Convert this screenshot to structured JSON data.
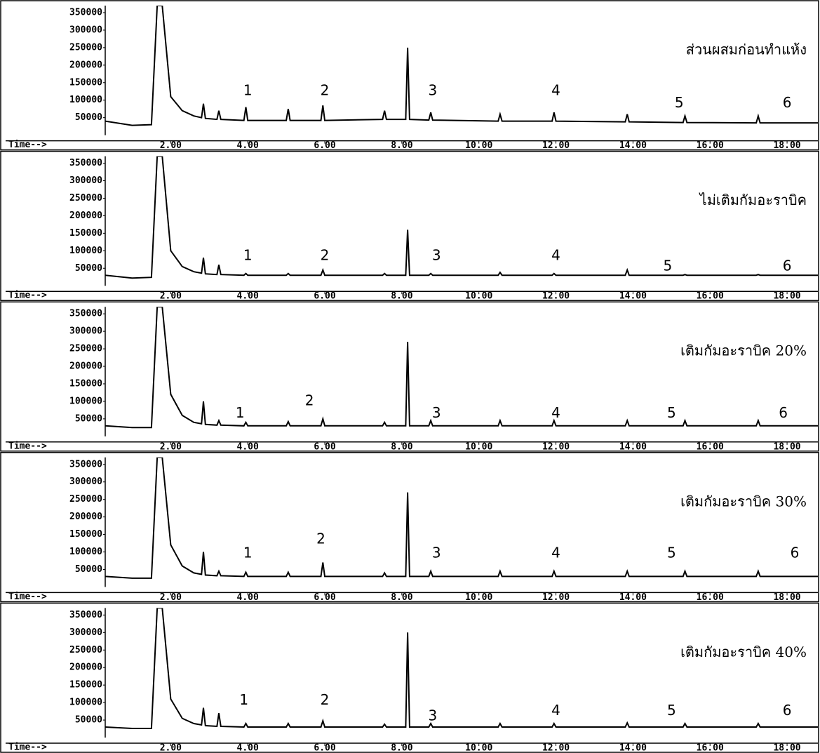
{
  "chart_data": [
    {
      "type": "line",
      "title": "ส่วนผสมก่อนทำแห้ง",
      "xlabel": "Time-->",
      "x": [
        0.3,
        1.0,
        1.5,
        1.65,
        1.72,
        1.78,
        2.0,
        2.3,
        2.6,
        2.8,
        2.85,
        2.9,
        3.2,
        3.25,
        3.3,
        3.9,
        3.95,
        4.0,
        5.0,
        5.05,
        5.1,
        5.9,
        5.95,
        6.0,
        7.5,
        7.55,
        7.6,
        8.1,
        8.15,
        8.2,
        8.7,
        8.75,
        8.8,
        10.5,
        10.55,
        10.6,
        11.9,
        11.95,
        12.0,
        13.8,
        13.85,
        13.9,
        15.3,
        15.35,
        15.4,
        17.2,
        17.25,
        17.3,
        18.8
      ],
      "values": [
        40000,
        28000,
        30000,
        370000,
        370000,
        370000,
        110000,
        70000,
        55000,
        50000,
        90000,
        48000,
        45000,
        70000,
        45000,
        42000,
        80000,
        42000,
        42000,
        75000,
        42000,
        42000,
        85000,
        42000,
        45000,
        70000,
        45000,
        45000,
        250000,
        45000,
        43000,
        65000,
        43000,
        40000,
        60000,
        40000,
        40000,
        65000,
        40000,
        38000,
        60000,
        38000,
        36000,
        55000,
        36000,
        35000,
        55000,
        35000,
        35000
      ],
      "color": "#000000",
      "xlim": [
        0.3,
        18.8
      ],
      "ylim": [
        0,
        370000
      ],
      "xticks": [
        {
          "value": 2,
          "label": "2.00"
        },
        {
          "value": 4,
          "label": "4.00"
        },
        {
          "value": 6,
          "label": "6.00"
        },
        {
          "value": 8,
          "label": "8.00"
        },
        {
          "value": 10,
          "label": "10.00"
        },
        {
          "value": 12,
          "label": "12.00"
        },
        {
          "value": 14,
          "label": "14.00"
        },
        {
          "value": 16,
          "label": "16.00"
        },
        {
          "value": 18,
          "label": "18.00"
        }
      ],
      "yticks": [
        50000,
        100000,
        150000,
        200000,
        250000,
        300000,
        350000
      ],
      "annotations": [
        {
          "text": "1",
          "x": 4.0,
          "y": 125000
        },
        {
          "text": "2",
          "x": 6.0,
          "y": 125000
        },
        {
          "text": "3",
          "x": 8.8,
          "y": 125000
        },
        {
          "text": "4",
          "x": 12.0,
          "y": 125000
        },
        {
          "text": "5",
          "x": 15.2,
          "y": 90000
        },
        {
          "text": "6",
          "x": 18.0,
          "y": 90000
        }
      ]
    },
    {
      "type": "line",
      "title": "ไม่เติมกัมอะราบิค",
      "xlabel": "Time-->",
      "x": [
        0.3,
        1.0,
        1.5,
        1.65,
        1.72,
        1.78,
        2.0,
        2.3,
        2.6,
        2.8,
        2.85,
        2.9,
        3.2,
        3.25,
        3.3,
        3.9,
        3.95,
        4.0,
        5.0,
        5.05,
        5.1,
        5.9,
        5.95,
        6.0,
        7.5,
        7.55,
        7.6,
        8.1,
        8.15,
        8.2,
        8.7,
        8.75,
        8.8,
        10.5,
        10.55,
        10.6,
        11.9,
        11.95,
        12.0,
        13.8,
        13.85,
        13.9,
        15.3,
        15.35,
        15.4,
        17.2,
        17.25,
        17.3,
        18.8
      ],
      "values": [
        30000,
        22000,
        24000,
        370000,
        370000,
        370000,
        100000,
        55000,
        40000,
        36000,
        80000,
        34000,
        32000,
        60000,
        32000,
        30000,
        35000,
        30000,
        30000,
        35000,
        30000,
        30000,
        45000,
        30000,
        30000,
        35000,
        30000,
        30000,
        160000,
        30000,
        30000,
        35000,
        30000,
        30000,
        38000,
        30000,
        30000,
        35000,
        30000,
        30000,
        45000,
        30000,
        30000,
        32000,
        30000,
        30000,
        32000,
        30000,
        30000
      ],
      "color": "#000000",
      "xlim": [
        0.3,
        18.8
      ],
      "ylim": [
        0,
        370000
      ],
      "xticks": [
        {
          "value": 2,
          "label": "2.00"
        },
        {
          "value": 4,
          "label": "4.00"
        },
        {
          "value": 6,
          "label": "6.00"
        },
        {
          "value": 8,
          "label": "8.00"
        },
        {
          "value": 10,
          "label": "10.00"
        },
        {
          "value": 12,
          "label": "12.00"
        },
        {
          "value": 14,
          "label": "14.00"
        },
        {
          "value": 16,
          "label": "16.00"
        },
        {
          "value": 18,
          "label": "18.00"
        }
      ],
      "yticks": [
        50000,
        100000,
        150000,
        200000,
        250000,
        300000,
        350000
      ],
      "annotations": [
        {
          "text": "1",
          "x": 4.0,
          "y": 85000
        },
        {
          "text": "2",
          "x": 6.0,
          "y": 85000
        },
        {
          "text": "3",
          "x": 8.9,
          "y": 85000
        },
        {
          "text": "4",
          "x": 12.0,
          "y": 85000
        },
        {
          "text": "5",
          "x": 14.9,
          "y": 55000
        },
        {
          "text": "6",
          "x": 18.0,
          "y": 55000
        }
      ]
    },
    {
      "type": "line",
      "title": "เติมกัมอะราบิค 20%",
      "xlabel": "Time-->",
      "x": [
        0.3,
        1.0,
        1.5,
        1.65,
        1.72,
        1.78,
        2.0,
        2.3,
        2.6,
        2.8,
        2.85,
        2.9,
        3.2,
        3.25,
        3.3,
        3.9,
        3.95,
        4.0,
        5.0,
        5.05,
        5.1,
        5.9,
        5.95,
        6.0,
        7.5,
        7.55,
        7.6,
        8.1,
        8.15,
        8.2,
        8.7,
        8.75,
        8.8,
        10.5,
        10.55,
        10.6,
        11.9,
        11.95,
        12.0,
        13.8,
        13.85,
        13.9,
        15.3,
        15.35,
        15.4,
        17.2,
        17.25,
        17.3,
        18.8
      ],
      "values": [
        30000,
        25000,
        25000,
        370000,
        370000,
        370000,
        120000,
        60000,
        40000,
        36000,
        100000,
        34000,
        32000,
        45000,
        32000,
        30000,
        40000,
        30000,
        30000,
        42000,
        30000,
        30000,
        50000,
        30000,
        30000,
        40000,
        30000,
        30000,
        270000,
        30000,
        30000,
        45000,
        30000,
        30000,
        45000,
        30000,
        30000,
        45000,
        30000,
        30000,
        45000,
        30000,
        30000,
        45000,
        30000,
        30000,
        45000,
        30000,
        30000
      ],
      "color": "#000000",
      "xlim": [
        0.3,
        18.8
      ],
      "ylim": [
        0,
        370000
      ],
      "xticks": [
        {
          "value": 2,
          "label": "2.00"
        },
        {
          "value": 4,
          "label": "4.00"
        },
        {
          "value": 6,
          "label": "6.00"
        },
        {
          "value": 8,
          "label": "8.00"
        },
        {
          "value": 10,
          "label": "10.00"
        },
        {
          "value": 12,
          "label": "12.00"
        },
        {
          "value": 14,
          "label": "14.00"
        },
        {
          "value": 16,
          "label": "16.00"
        },
        {
          "value": 18,
          "label": "18.00"
        }
      ],
      "yticks": [
        50000,
        100000,
        150000,
        200000,
        250000,
        300000,
        350000
      ],
      "annotations": [
        {
          "text": "1",
          "x": 3.8,
          "y": 65000
        },
        {
          "text": "2",
          "x": 5.6,
          "y": 100000
        },
        {
          "text": "3",
          "x": 8.9,
          "y": 65000
        },
        {
          "text": "4",
          "x": 12.0,
          "y": 65000
        },
        {
          "text": "5",
          "x": 15.0,
          "y": 65000
        },
        {
          "text": "6",
          "x": 17.9,
          "y": 65000
        }
      ]
    },
    {
      "type": "line",
      "title": "เติมกัมอะราบิค 30%",
      "xlabel": "Time-->",
      "x": [
        0.3,
        1.0,
        1.5,
        1.65,
        1.72,
        1.78,
        2.0,
        2.3,
        2.6,
        2.8,
        2.85,
        2.9,
        3.2,
        3.25,
        3.3,
        3.9,
        3.95,
        4.0,
        5.0,
        5.05,
        5.1,
        5.9,
        5.95,
        6.0,
        7.5,
        7.55,
        7.6,
        8.1,
        8.15,
        8.2,
        8.7,
        8.75,
        8.8,
        10.5,
        10.55,
        10.6,
        11.9,
        11.95,
        12.0,
        13.8,
        13.85,
        13.9,
        15.3,
        15.35,
        15.4,
        17.2,
        17.25,
        17.3,
        18.8
      ],
      "values": [
        30000,
        25000,
        25000,
        370000,
        370000,
        370000,
        120000,
        60000,
        40000,
        36000,
        100000,
        34000,
        32000,
        45000,
        32000,
        30000,
        42000,
        30000,
        30000,
        42000,
        30000,
        30000,
        70000,
        30000,
        30000,
        40000,
        30000,
        30000,
        270000,
        30000,
        30000,
        45000,
        30000,
        30000,
        45000,
        30000,
        30000,
        45000,
        30000,
        30000,
        45000,
        30000,
        30000,
        45000,
        30000,
        30000,
        45000,
        30000,
        30000
      ],
      "color": "#000000",
      "xlim": [
        0.3,
        18.8
      ],
      "ylim": [
        0,
        370000
      ],
      "xticks": [
        {
          "value": 2,
          "label": "2.00"
        },
        {
          "value": 4,
          "label": "4.00"
        },
        {
          "value": 6,
          "label": "6.00"
        },
        {
          "value": 8,
          "label": "8.00"
        },
        {
          "value": 10,
          "label": "10.00"
        },
        {
          "value": 12,
          "label": "12.00"
        },
        {
          "value": 14,
          "label": "14.00"
        },
        {
          "value": 16,
          "label": "16.00"
        },
        {
          "value": 18,
          "label": "18.00"
        }
      ],
      "yticks": [
        50000,
        100000,
        150000,
        200000,
        250000,
        300000,
        350000
      ],
      "annotations": [
        {
          "text": "1",
          "x": 4.0,
          "y": 95000
        },
        {
          "text": "2",
          "x": 5.9,
          "y": 135000
        },
        {
          "text": "3",
          "x": 8.9,
          "y": 95000
        },
        {
          "text": "4",
          "x": 12.0,
          "y": 95000
        },
        {
          "text": "5",
          "x": 15.0,
          "y": 95000
        },
        {
          "text": "6",
          "x": 18.2,
          "y": 95000
        }
      ]
    },
    {
      "type": "line",
      "title": "เติมกัมอะราบิค 40%",
      "xlabel": "Time-->",
      "x": [
        0.3,
        1.0,
        1.5,
        1.65,
        1.72,
        1.78,
        2.0,
        2.3,
        2.6,
        2.8,
        2.85,
        2.9,
        3.2,
        3.25,
        3.3,
        3.9,
        3.95,
        4.0,
        5.0,
        5.05,
        5.1,
        5.9,
        5.95,
        6.0,
        7.5,
        7.55,
        7.6,
        8.1,
        8.15,
        8.2,
        8.7,
        8.75,
        8.8,
        10.5,
        10.55,
        10.6,
        11.9,
        11.95,
        12.0,
        13.8,
        13.85,
        13.9,
        15.3,
        15.35,
        15.4,
        17.2,
        17.25,
        17.3,
        18.8
      ],
      "values": [
        30000,
        26000,
        26000,
        370000,
        370000,
        370000,
        110000,
        55000,
        40000,
        36000,
        85000,
        34000,
        32000,
        70000,
        32000,
        30000,
        40000,
        30000,
        30000,
        40000,
        30000,
        30000,
        48000,
        30000,
        30000,
        38000,
        30000,
        30000,
        300000,
        30000,
        30000,
        40000,
        30000,
        30000,
        40000,
        30000,
        30000,
        40000,
        30000,
        30000,
        42000,
        30000,
        30000,
        40000,
        30000,
        30000,
        40000,
        30000,
        30000
      ],
      "color": "#000000",
      "xlim": [
        0.3,
        18.8
      ],
      "ylim": [
        0,
        370000
      ],
      "xticks": [
        {
          "value": 2,
          "label": "2.00"
        },
        {
          "value": 4,
          "label": "4.00"
        },
        {
          "value": 6,
          "label": "6.00"
        },
        {
          "value": 8,
          "label": "8.00"
        },
        {
          "value": 10,
          "label": "10.00"
        },
        {
          "value": 12,
          "label": "12.00"
        },
        {
          "value": 14,
          "label": "14.00"
        },
        {
          "value": 16,
          "label": "16.00"
        },
        {
          "value": 18,
          "label": "18.00"
        }
      ],
      "yticks": [
        50000,
        100000,
        150000,
        200000,
        250000,
        300000,
        350000
      ],
      "annotations": [
        {
          "text": "1",
          "x": 3.9,
          "y": 105000
        },
        {
          "text": "2",
          "x": 6.0,
          "y": 105000
        },
        {
          "text": "3",
          "x": 8.8,
          "y": 60000
        },
        {
          "text": "4",
          "x": 12.0,
          "y": 75000
        },
        {
          "text": "5",
          "x": 15.0,
          "y": 75000
        },
        {
          "text": "6",
          "x": 18.0,
          "y": 75000
        }
      ]
    }
  ]
}
